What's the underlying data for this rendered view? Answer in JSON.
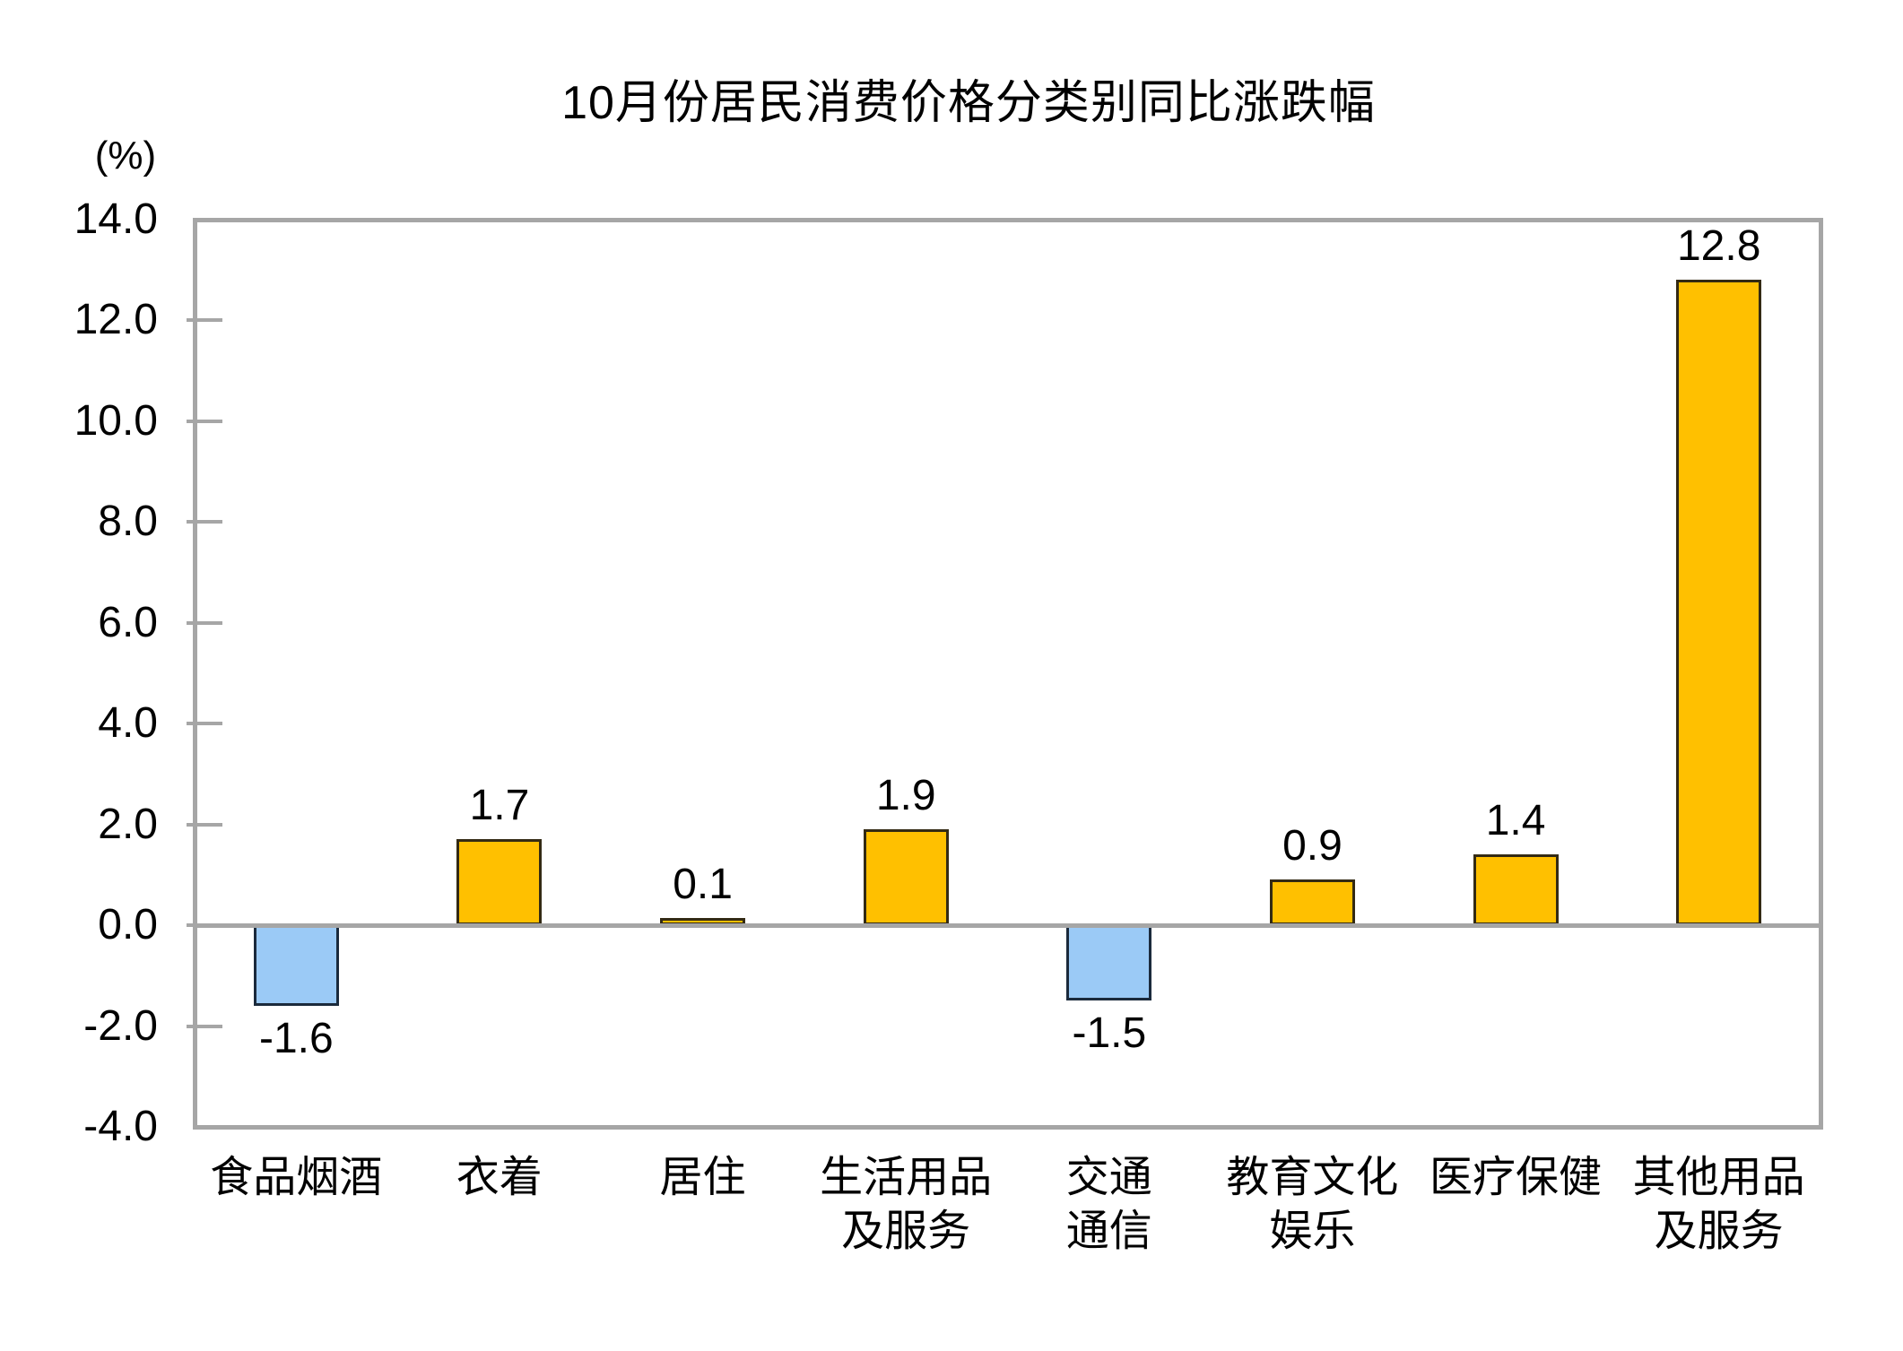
{
  "page": {
    "background": "#FFFFFF"
  },
  "chart_data": {
    "type": "bar",
    "title": "10月份居民消费价格分类别同比涨跌幅",
    "unit_label": "(%)",
    "categories": [
      "食品烟酒",
      "衣着",
      "居住",
      "生活用品\n及服务",
      "交通\n通信",
      "教育文化\n娱乐",
      "医疗保健",
      "其他用品\n及服务"
    ],
    "values": [
      -1.6,
      1.7,
      0.1,
      1.9,
      -1.5,
      0.9,
      1.4,
      12.8
    ],
    "value_labels": [
      "-1.6",
      "1.7",
      "0.1",
      "1.9",
      "-1.5",
      "0.9",
      "1.4",
      "12.8"
    ],
    "xlabel": "",
    "ylabel": "(%)",
    "ylim": [
      -4.0,
      14.0
    ],
    "ytick_step": 2.0,
    "yticks": [
      "14.0",
      "12.0",
      "10.0",
      "8.0",
      "6.0",
      "4.0",
      "2.0",
      "0.0",
      "-2.0",
      "-4.0"
    ],
    "grid": false,
    "legend_position": "none",
    "colors": {
      "positive_fill": "#FFC000",
      "positive_border": "#332A14",
      "negative_fill": "#9BCAF6",
      "negative_border": "#1B2A3C",
      "axis_frame": "#A6A6A6",
      "zero_line": "#A6A6A6",
      "tick_mark": "#A6A6A6",
      "text": "#000000",
      "background": "#FFFFFF"
    }
  }
}
